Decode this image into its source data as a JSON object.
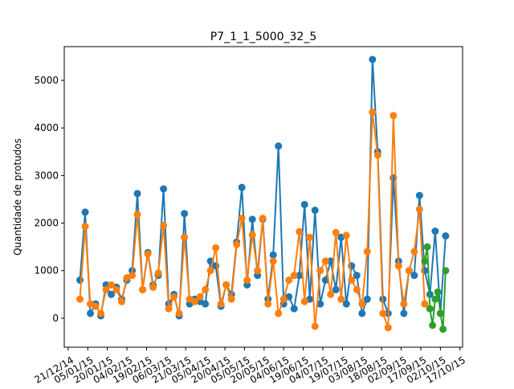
{
  "chart_data": {
    "type": "line",
    "title": "P7_1_1_5000_32_5",
    "y_label": "Quantidade de protudos",
    "xlim": [
      "2014-12-18",
      "2015-10-19"
    ],
    "xticks": [
      {
        "value": "2014-12-21",
        "label": "21/12/14"
      },
      {
        "value": "2015-01-05",
        "label": "05/01/15"
      },
      {
        "value": "2015-01-20",
        "label": "20/01/15"
      },
      {
        "value": "2015-02-04",
        "label": "04/02/15"
      },
      {
        "value": "2015-02-19",
        "label": "19/02/15"
      },
      {
        "value": "2015-03-06",
        "label": "06/03/15"
      },
      {
        "value": "2015-03-21",
        "label": "21/03/15"
      },
      {
        "value": "2015-04-05",
        "label": "05/04/15"
      },
      {
        "value": "2015-04-20",
        "label": "20/04/15"
      },
      {
        "value": "2015-05-05",
        "label": "05/05/15"
      },
      {
        "value": "2015-05-20",
        "label": "20/05/15"
      },
      {
        "value": "2015-06-04",
        "label": "04/06/15"
      },
      {
        "value": "2015-06-19",
        "label": "19/06/15"
      },
      {
        "value": "2015-07-04",
        "label": "04/07/15"
      },
      {
        "value": "2015-07-19",
        "label": "19/07/15"
      },
      {
        "value": "2015-08-03",
        "label": "03/08/15"
      },
      {
        "value": "2015-08-18",
        "label": "18/08/15"
      },
      {
        "value": "2015-09-02",
        "label": "02/09/15"
      },
      {
        "value": "2015-09-17",
        "label": "17/09/15"
      },
      {
        "value": "2015-10-02",
        "label": "02/10/15"
      },
      {
        "value": "2015-10-17",
        "label": "17/10/15"
      }
    ],
    "ylim": [
      -610,
      5710
    ],
    "yticks": [
      0,
      1000,
      2000,
      3000,
      4000,
      5000
    ],
    "grid": false,
    "series": [
      {
        "color": "#1f77b4",
        "x": [
          "2014-12-30",
          "2015-01-03",
          "2015-01-07",
          "2015-01-11",
          "2015-01-15",
          "2015-01-19",
          "2015-01-23",
          "2015-01-27",
          "2015-01-31",
          "2015-02-04",
          "2015-02-08",
          "2015-02-12",
          "2015-02-16",
          "2015-02-20",
          "2015-02-24",
          "2015-02-28",
          "2015-03-04",
          "2015-03-08",
          "2015-03-12",
          "2015-03-16",
          "2015-03-20",
          "2015-03-24",
          "2015-03-28",
          "2015-04-01",
          "2015-04-05",
          "2015-04-09",
          "2015-04-13",
          "2015-04-17",
          "2015-04-21",
          "2015-04-25",
          "2015-04-29",
          "2015-05-03",
          "2015-05-07",
          "2015-05-11",
          "2015-05-15",
          "2015-05-19",
          "2015-05-23",
          "2015-05-27",
          "2015-05-31",
          "2015-06-04",
          "2015-06-08",
          "2015-06-12",
          "2015-06-16",
          "2015-06-20",
          "2015-06-24",
          "2015-06-28",
          "2015-07-02",
          "2015-07-06",
          "2015-07-10",
          "2015-07-14",
          "2015-07-18",
          "2015-07-22",
          "2015-07-26",
          "2015-07-30",
          "2015-08-03",
          "2015-08-07",
          "2015-08-11",
          "2015-08-15",
          "2015-08-19",
          "2015-08-23",
          "2015-08-27",
          "2015-08-31",
          "2015-09-04",
          "2015-09-08",
          "2015-09-12",
          "2015-09-16",
          "2015-09-20",
          "2015-09-24",
          "2015-09-28",
          "2015-10-02",
          "2015-10-06"
        ],
        "values": [
          800,
          2230,
          100,
          300,
          50,
          700,
          500,
          650,
          400,
          800,
          1000,
          2620,
          600,
          1380,
          700,
          900,
          2720,
          300,
          500,
          50,
          2200,
          300,
          400,
          350,
          300,
          1200,
          1100,
          250,
          700,
          500,
          1600,
          2750,
          700,
          2080,
          900,
          2080,
          400,
          1330,
          3620,
          300,
          450,
          200,
          900,
          2390,
          400,
          2270,
          300,
          800,
          1200,
          600,
          1700,
          300,
          1100,
          900,
          100,
          400,
          5440,
          3500,
          400,
          100,
          2950,
          1200,
          100,
          1000,
          900,
          2580,
          1000,
          500,
          1830,
          100,
          1730
        ]
      },
      {
        "color": "#ff7f0e",
        "x": [
          "2014-12-30",
          "2015-01-03",
          "2015-01-07",
          "2015-01-11",
          "2015-01-15",
          "2015-01-19",
          "2015-01-23",
          "2015-01-27",
          "2015-01-31",
          "2015-02-04",
          "2015-02-08",
          "2015-02-12",
          "2015-02-16",
          "2015-02-20",
          "2015-02-24",
          "2015-02-28",
          "2015-03-04",
          "2015-03-08",
          "2015-03-12",
          "2015-03-16",
          "2015-03-20",
          "2015-03-24",
          "2015-03-28",
          "2015-04-01",
          "2015-04-05",
          "2015-04-09",
          "2015-04-13",
          "2015-04-17",
          "2015-04-21",
          "2015-04-25",
          "2015-04-29",
          "2015-05-03",
          "2015-05-07",
          "2015-05-11",
          "2015-05-15",
          "2015-05-19",
          "2015-05-23",
          "2015-05-27",
          "2015-05-31",
          "2015-06-04",
          "2015-06-08",
          "2015-06-12",
          "2015-06-16",
          "2015-06-20",
          "2015-06-24",
          "2015-06-28",
          "2015-07-02",
          "2015-07-06",
          "2015-07-10",
          "2015-07-14",
          "2015-07-18",
          "2015-07-22",
          "2015-07-26",
          "2015-07-30",
          "2015-08-03",
          "2015-08-07",
          "2015-08-11",
          "2015-08-15",
          "2015-08-19",
          "2015-08-23",
          "2015-08-27",
          "2015-08-31",
          "2015-09-04",
          "2015-09-08",
          "2015-09-12",
          "2015-09-16",
          "2015-09-20",
          "2015-09-24"
        ],
        "values": [
          400,
          1930,
          300,
          250,
          100,
          600,
          700,
          600,
          350,
          850,
          900,
          2180,
          600,
          1350,
          650,
          950,
          1950,
          200,
          450,
          100,
          1700,
          400,
          350,
          450,
          600,
          1000,
          1480,
          300,
          700,
          400,
          1550,
          2100,
          800,
          1750,
          1000,
          2100,
          300,
          1200,
          100,
          400,
          800,
          900,
          1820,
          350,
          1700,
          -170,
          1000,
          1200,
          500,
          1800,
          400,
          1740,
          800,
          600,
          300,
          1400,
          4330,
          3430,
          100,
          -200,
          4260,
          1100,
          300,
          1000,
          1400,
          2290,
          300,
          200
        ]
      },
      {
        "color": "#2ca02c",
        "x": [
          "2015-09-20",
          "2015-09-22",
          "2015-09-24",
          "2015-09-26",
          "2015-09-28",
          "2015-09-30",
          "2015-10-02",
          "2015-10-04",
          "2015-10-06"
        ],
        "values": [
          1200,
          1500,
          200,
          -150,
          400,
          550,
          100,
          -230,
          1000
        ]
      }
    ]
  }
}
